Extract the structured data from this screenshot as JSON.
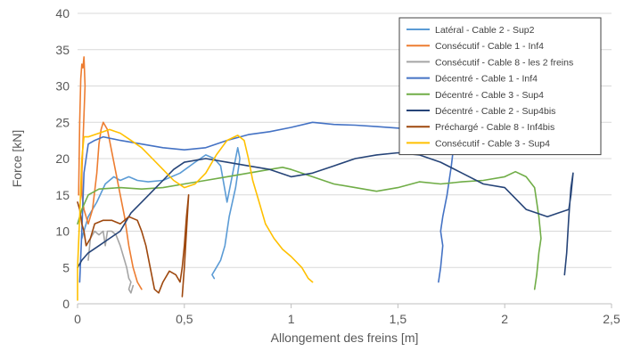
{
  "chart_data": {
    "type": "line",
    "title": "",
    "xlabel": "Allongement des freins [m]",
    "ylabel": "Force [kN]",
    "xlim": [
      0,
      2.5
    ],
    "ylim": [
      0,
      40
    ],
    "x_ticks": [
      0,
      0.5,
      1,
      1.5,
      2,
      2.5
    ],
    "x_tick_labels": [
      "0",
      "0,5",
      "1",
      "1,5",
      "2",
      "2,5"
    ],
    "y_ticks": [
      0,
      5,
      10,
      15,
      20,
      25,
      30,
      35,
      40
    ],
    "y_tick_labels": [
      "0",
      "5",
      "10",
      "15",
      "20",
      "25",
      "30",
      "35",
      "40"
    ],
    "grid": "horizontal",
    "legend_position": "top-right",
    "series": [
      {
        "name": "Latéral - Cable 2 - Sup2",
        "color": "#5B9BD5",
        "points": [
          [
            0.02,
            9
          ],
          [
            0.05,
            12
          ],
          [
            0.09,
            14
          ],
          [
            0.13,
            16.5
          ],
          [
            0.17,
            17.5
          ],
          [
            0.2,
            17
          ],
          [
            0.24,
            17.5
          ],
          [
            0.28,
            17
          ],
          [
            0.33,
            16.8
          ],
          [
            0.4,
            17
          ],
          [
            0.48,
            18
          ],
          [
            0.55,
            19.5
          ],
          [
            0.6,
            20.5
          ],
          [
            0.64,
            20
          ],
          [
            0.67,
            19
          ],
          [
            0.7,
            14
          ],
          [
            0.72,
            17
          ],
          [
            0.74,
            20
          ],
          [
            0.75,
            21.5
          ],
          [
            0.76,
            20
          ],
          [
            0.74,
            16
          ],
          [
            0.71,
            12
          ],
          [
            0.69,
            8
          ],
          [
            0.67,
            6
          ],
          [
            0.65,
            5
          ],
          [
            0.63,
            4
          ],
          [
            0.64,
            3.5
          ]
        ]
      },
      {
        "name": "Consécutif - Cable 1 - Inf4",
        "color": "#ED7D31",
        "points": [
          [
            0.005,
            15
          ],
          [
            0.01,
            25
          ],
          [
            0.015,
            31
          ],
          [
            0.02,
            33
          ],
          [
            0.025,
            32.5
          ],
          [
            0.03,
            34
          ],
          [
            0.035,
            30
          ],
          [
            0.03,
            26
          ],
          [
            0.025,
            22
          ],
          [
            0.02,
            18
          ],
          [
            0.02,
            15
          ],
          [
            0.03,
            13
          ],
          [
            0.05,
            11
          ],
          [
            0.07,
            13
          ],
          [
            0.09,
            18
          ],
          [
            0.1,
            22
          ],
          [
            0.11,
            24
          ],
          [
            0.12,
            25
          ],
          [
            0.14,
            24
          ],
          [
            0.16,
            21
          ],
          [
            0.18,
            18
          ],
          [
            0.2,
            15
          ],
          [
            0.22,
            12
          ],
          [
            0.24,
            8
          ],
          [
            0.26,
            5
          ],
          [
            0.28,
            3
          ],
          [
            0.3,
            2
          ]
        ]
      },
      {
        "name": "Consécutif - Cable 8 - les 2 freins",
        "color": "#A5A5A5",
        "points": [
          [
            0.05,
            6
          ],
          [
            0.06,
            9
          ],
          [
            0.08,
            10
          ],
          [
            0.1,
            9.5
          ],
          [
            0.12,
            10
          ],
          [
            0.13,
            8
          ],
          [
            0.14,
            10
          ],
          [
            0.16,
            10
          ],
          [
            0.18,
            9.5
          ],
          [
            0.2,
            8
          ],
          [
            0.22,
            6
          ],
          [
            0.23,
            5
          ],
          [
            0.24,
            3.5
          ],
          [
            0.25,
            3
          ],
          [
            0.24,
            2
          ],
          [
            0.25,
            1.5
          ],
          [
            0.26,
            2.5
          ]
        ]
      },
      {
        "name": "Décentré - Cable 1 - Inf4",
        "color": "#4472C4",
        "points": [
          [
            0.01,
            3
          ],
          [
            0.02,
            10
          ],
          [
            0.03,
            18
          ],
          [
            0.05,
            22
          ],
          [
            0.08,
            22.5
          ],
          [
            0.12,
            23
          ],
          [
            0.2,
            22.5
          ],
          [
            0.3,
            22
          ],
          [
            0.4,
            21.5
          ],
          [
            0.5,
            21.2
          ],
          [
            0.6,
            21.5
          ],
          [
            0.7,
            22.5
          ],
          [
            0.8,
            23.3
          ],
          [
            0.9,
            23.7
          ],
          [
            1.0,
            24.3
          ],
          [
            1.1,
            25
          ],
          [
            1.2,
            24.7
          ],
          [
            1.3,
            24.6
          ],
          [
            1.4,
            24.4
          ],
          [
            1.5,
            24.2
          ],
          [
            1.6,
            24
          ],
          [
            1.65,
            23.5
          ],
          [
            1.75,
            23
          ],
          [
            1.76,
            21.5
          ],
          [
            1.75,
            19
          ],
          [
            1.73,
            15
          ],
          [
            1.71,
            12
          ],
          [
            1.7,
            10
          ],
          [
            1.71,
            8
          ],
          [
            1.7,
            5
          ],
          [
            1.69,
            3
          ]
        ]
      },
      {
        "name": "Décentré - Cable 3 - Sup4",
        "color": "#70AD47",
        "points": [
          [
            0.0,
            11
          ],
          [
            0.02,
            13
          ],
          [
            0.05,
            15
          ],
          [
            0.1,
            15.8
          ],
          [
            0.2,
            16
          ],
          [
            0.3,
            15.8
          ],
          [
            0.4,
            16
          ],
          [
            0.5,
            16.5
          ],
          [
            0.6,
            17
          ],
          [
            0.7,
            17.5
          ],
          [
            0.8,
            18
          ],
          [
            0.9,
            18.5
          ],
          [
            0.96,
            18.8
          ],
          [
            1.0,
            18.5
          ],
          [
            1.1,
            17.5
          ],
          [
            1.2,
            16.5
          ],
          [
            1.3,
            16
          ],
          [
            1.4,
            15.5
          ],
          [
            1.5,
            16
          ],
          [
            1.6,
            16.8
          ],
          [
            1.7,
            16.5
          ],
          [
            1.8,
            16.8
          ],
          [
            1.9,
            17
          ],
          [
            2.0,
            17.5
          ],
          [
            2.05,
            18.2
          ],
          [
            2.1,
            17.5
          ],
          [
            2.14,
            16
          ],
          [
            2.15,
            14
          ],
          [
            2.16,
            12
          ],
          [
            2.17,
            9
          ],
          [
            2.16,
            7
          ],
          [
            2.15,
            4
          ],
          [
            2.14,
            2
          ]
        ]
      },
      {
        "name": "Décentré - Cable 2 - Sup4bis",
        "color": "#264478",
        "points": [
          [
            0.0,
            5
          ],
          [
            0.02,
            6
          ],
          [
            0.05,
            7
          ],
          [
            0.1,
            8
          ],
          [
            0.15,
            9
          ],
          [
            0.2,
            10
          ],
          [
            0.25,
            12.5
          ],
          [
            0.3,
            14
          ],
          [
            0.35,
            15.5
          ],
          [
            0.4,
            17
          ],
          [
            0.45,
            18.5
          ],
          [
            0.5,
            19.5
          ],
          [
            0.6,
            20
          ],
          [
            0.7,
            19.5
          ],
          [
            0.8,
            19
          ],
          [
            0.9,
            18.5
          ],
          [
            1.0,
            17.5
          ],
          [
            1.1,
            18
          ],
          [
            1.2,
            19
          ],
          [
            1.3,
            20
          ],
          [
            1.4,
            20.5
          ],
          [
            1.5,
            20.8
          ],
          [
            1.6,
            20.5
          ],
          [
            1.7,
            19.5
          ],
          [
            1.8,
            18
          ],
          [
            1.9,
            16.5
          ],
          [
            2.0,
            16
          ],
          [
            2.05,
            14.5
          ],
          [
            2.1,
            13
          ],
          [
            2.15,
            12.5
          ],
          [
            2.2,
            12
          ],
          [
            2.25,
            12.5
          ],
          [
            2.3,
            13
          ],
          [
            2.31,
            15
          ],
          [
            2.32,
            18
          ],
          [
            2.31,
            16
          ],
          [
            2.3,
            12
          ],
          [
            2.29,
            7
          ],
          [
            2.28,
            4
          ]
        ]
      },
      {
        "name": "Préchargé - Cable 8 - Inf4bis",
        "color": "#9E480E",
        "points": [
          [
            0.0,
            14
          ],
          [
            0.01,
            13
          ],
          [
            0.02,
            11
          ],
          [
            0.03,
            10
          ],
          [
            0.04,
            8
          ],
          [
            0.06,
            9
          ],
          [
            0.08,
            11
          ],
          [
            0.12,
            11.5
          ],
          [
            0.16,
            11.5
          ],
          [
            0.2,
            11
          ],
          [
            0.24,
            12
          ],
          [
            0.28,
            11.5
          ],
          [
            0.3,
            10
          ],
          [
            0.32,
            8
          ],
          [
            0.34,
            5
          ],
          [
            0.36,
            2
          ],
          [
            0.38,
            1.5
          ],
          [
            0.4,
            3
          ],
          [
            0.43,
            4.5
          ],
          [
            0.46,
            4
          ],
          [
            0.48,
            3
          ],
          [
            0.49,
            5
          ],
          [
            0.5,
            8
          ],
          [
            0.51,
            12
          ],
          [
            0.52,
            15
          ],
          [
            0.51,
            10
          ],
          [
            0.5,
            5
          ],
          [
            0.49,
            1
          ]
        ]
      },
      {
        "name": "Consécutif - Cable 3 - Sup4",
        "color": "#FFC000",
        "points": [
          [
            0.0,
            0.5
          ],
          [
            0.0,
            5
          ],
          [
            0.01,
            12
          ],
          [
            0.02,
            20
          ],
          [
            0.03,
            23
          ],
          [
            0.05,
            23
          ],
          [
            0.1,
            23.5
          ],
          [
            0.15,
            24
          ],
          [
            0.2,
            23.5
          ],
          [
            0.25,
            22.5
          ],
          [
            0.3,
            21.5
          ],
          [
            0.35,
            20
          ],
          [
            0.4,
            18.5
          ],
          [
            0.45,
            17
          ],
          [
            0.5,
            16
          ],
          [
            0.55,
            16.5
          ],
          [
            0.6,
            18
          ],
          [
            0.65,
            20.5
          ],
          [
            0.7,
            22.5
          ],
          [
            0.75,
            23.2
          ],
          [
            0.78,
            22.5
          ],
          [
            0.8,
            20
          ],
          [
            0.82,
            17
          ],
          [
            0.85,
            14
          ],
          [
            0.88,
            11
          ],
          [
            0.92,
            9
          ],
          [
            0.96,
            7.5
          ],
          [
            1.0,
            6.5
          ],
          [
            1.05,
            5
          ],
          [
            1.08,
            3.5
          ],
          [
            1.1,
            3
          ]
        ]
      }
    ]
  }
}
